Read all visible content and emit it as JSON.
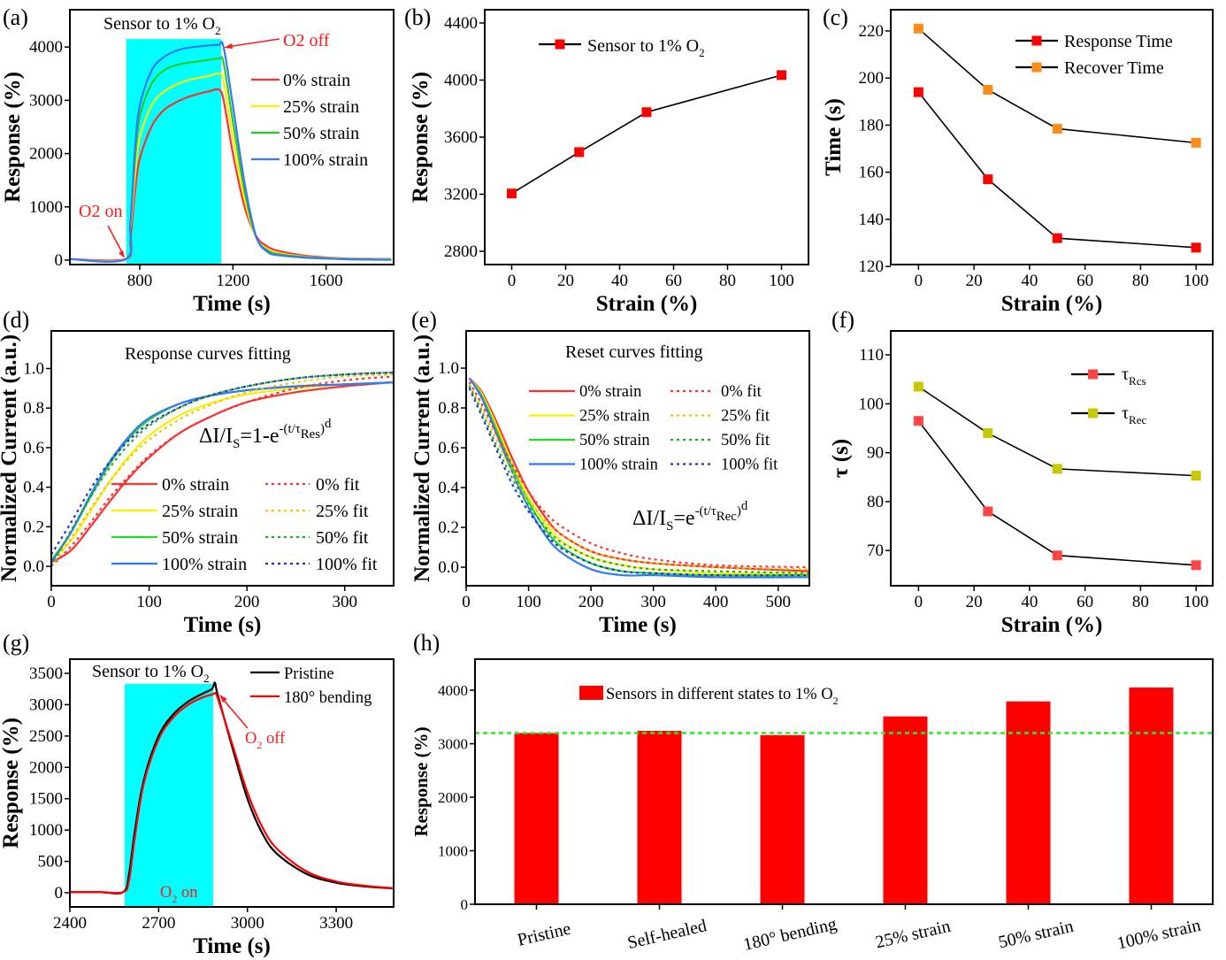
{
  "chart_data": [
    {
      "panel": "(a)",
      "type": "line",
      "title": "Sensor to 1% O",
      "title_sub": "2",
      "xlabel": "Time (s)",
      "ylabel": "Response (%)",
      "xlim": [
        500,
        1890
      ],
      "ylim": [
        -83,
        4700
      ],
      "xticks": [
        "800",
        "1200",
        "1600"
      ],
      "yticks": [
        "0",
        "1000",
        "2000",
        "3000",
        "4000"
      ],
      "highlight_interval": [
        742,
        1150
      ],
      "highlight_top": 4150,
      "highlight_color": "#00ffff",
      "annotations": {
        "off": "O2 off",
        "on": "O2 on"
      },
      "x": [
        500,
        740,
        760,
        780,
        800,
        850,
        900,
        950,
        1000,
        1050,
        1100,
        1140,
        1160,
        1200,
        1250,
        1300,
        1350,
        1400,
        1500,
        1600,
        1700,
        1880
      ],
      "series": [
        {
          "name": "0% strain",
          "color": "#ff3030",
          "values": [
            20,
            20,
            400,
            1300,
            1900,
            2500,
            2800,
            2950,
            3050,
            3120,
            3170,
            3200,
            3000,
            2000,
            1000,
            450,
            250,
            170,
            90,
            50,
            30,
            20
          ]
        },
        {
          "name": "25% strain",
          "color": "#ffee00",
          "values": [
            20,
            20,
            600,
            1600,
            2300,
            2900,
            3150,
            3280,
            3370,
            3420,
            3460,
            3500,
            3350,
            2300,
            1150,
            420,
            200,
            130,
            70,
            40,
            25,
            15
          ]
        },
        {
          "name": "50% strain",
          "color": "#22cc22",
          "values": [
            20,
            20,
            700,
            1900,
            2700,
            3300,
            3550,
            3650,
            3700,
            3730,
            3760,
            3780,
            3700,
            2600,
            1300,
            430,
            180,
            110,
            60,
            35,
            20,
            10
          ]
        },
        {
          "name": "100% strain",
          "color": "#3377ff",
          "values": [
            20,
            20,
            700,
            2100,
            2900,
            3550,
            3800,
            3920,
            3980,
            4010,
            4030,
            4040,
            4000,
            2900,
            1450,
            440,
            150,
            90,
            50,
            30,
            15,
            5
          ]
        }
      ]
    },
    {
      "panel": "(b)",
      "type": "line",
      "xlabel": "Strain (%)",
      "ylabel": "Response (%)",
      "xlim": [
        -10,
        110
      ],
      "ylim": [
        2707,
        4493
      ],
      "xticks": [
        "0",
        "20",
        "40",
        "60",
        "80",
        "100"
      ],
      "yticks": [
        "2800",
        "3200",
        "3600",
        "4000",
        "4400"
      ],
      "x": [
        0,
        25,
        50,
        100
      ],
      "series": [
        {
          "name": "Sensor to 1% O",
          "name_sub": "2",
          "color": "#ff0000",
          "values": [
            3205,
            3495,
            3775,
            4035
          ]
        }
      ]
    },
    {
      "panel": "(c)",
      "type": "line",
      "xlabel": "Strain (%)",
      "ylabel": "Time (s)",
      "xlim": [
        -10,
        106
      ],
      "ylim": [
        120.8,
        229
      ],
      "xticks": [
        "0",
        "20",
        "40",
        "60",
        "80",
        "100"
      ],
      "yticks": [
        "120",
        "140",
        "160",
        "180",
        "200",
        "220"
      ],
      "x": [
        0,
        25,
        50,
        100
      ],
      "series": [
        {
          "name": "Response Time",
          "color": "#ff0000",
          "values": [
            194,
            157,
            132,
            128
          ]
        },
        {
          "name": "Recover Time",
          "color": "#ff8c1a",
          "values": [
            221,
            195,
            178.5,
            172.5
          ]
        }
      ]
    },
    {
      "panel": "(d)",
      "type": "line",
      "title": "Response curves fitting",
      "equation": [
        {
          "text": "ΔI/I",
          "pos": "base"
        },
        {
          "text": "S",
          "pos": "sub"
        },
        {
          "text": "=1-e",
          "pos": "base"
        },
        {
          "text": "-(t/τ",
          "pos": "sup"
        },
        {
          "text": "Res",
          "pos": "supsub"
        },
        {
          "text": ")",
          "pos": "sup"
        },
        {
          "text": "d",
          "pos": "supsup"
        }
      ],
      "xlabel": "Time (s)",
      "ylabel": "Normalized Current (a.u.)",
      "xlim": [
        0,
        350
      ],
      "ylim": [
        -0.098,
        1.19
      ],
      "xticks": [
        "0",
        "100",
        "200",
        "300"
      ],
      "yticks": [
        "0.0",
        "0.2",
        "0.4",
        "0.6",
        "0.8",
        "1.0"
      ],
      "x": [
        0,
        20,
        40,
        60,
        80,
        100,
        130,
        160,
        200,
        250,
        300,
        350
      ],
      "series": [
        {
          "name": "0% strain",
          "color": "#ff3030",
          "style": "solid",
          "values": [
            0.02,
            0.08,
            0.2,
            0.33,
            0.45,
            0.55,
            0.67,
            0.75,
            0.83,
            0.88,
            0.91,
            0.93
          ]
        },
        {
          "name": "25% strain",
          "color": "#ffee00",
          "style": "solid",
          "values": [
            0.03,
            0.13,
            0.28,
            0.43,
            0.56,
            0.66,
            0.76,
            0.82,
            0.87,
            0.9,
            0.92,
            0.93
          ]
        },
        {
          "name": "50% strain",
          "color": "#22dd22",
          "style": "solid",
          "values": [
            0.03,
            0.17,
            0.35,
            0.52,
            0.65,
            0.74,
            0.82,
            0.86,
            0.89,
            0.91,
            0.92,
            0.93
          ]
        },
        {
          "name": "100% strain",
          "color": "#3377ff",
          "style": "solid",
          "values": [
            0.02,
            0.17,
            0.36,
            0.53,
            0.66,
            0.75,
            0.82,
            0.86,
            0.89,
            0.91,
            0.92,
            0.93
          ]
        },
        {
          "name": "0% fit",
          "color": "#ff3030",
          "style": "dotted",
          "values": [
            0.0,
            0.1,
            0.22,
            0.35,
            0.46,
            0.56,
            0.67,
            0.75,
            0.83,
            0.9,
            0.94,
            0.96
          ]
        },
        {
          "name": "25% fit",
          "color": "#e6c800",
          "style": "dotted",
          "values": [
            0.0,
            0.14,
            0.29,
            0.43,
            0.55,
            0.64,
            0.74,
            0.81,
            0.88,
            0.93,
            0.96,
            0.97
          ]
        },
        {
          "name": "50% fit",
          "color": "#22aa22",
          "style": "dotted",
          "values": [
            0.0,
            0.18,
            0.35,
            0.5,
            0.62,
            0.71,
            0.8,
            0.86,
            0.91,
            0.95,
            0.97,
            0.98
          ]
        },
        {
          "name": "100% fit",
          "color": "#2233cc",
          "style": "dotted",
          "values": [
            0.06,
            0.22,
            0.39,
            0.53,
            0.64,
            0.72,
            0.8,
            0.86,
            0.91,
            0.95,
            0.97,
            0.98
          ]
        }
      ]
    },
    {
      "panel": "(e)",
      "type": "line",
      "title": "Reset curves fitting",
      "equation": [
        {
          "text": "ΔI/I",
          "pos": "base"
        },
        {
          "text": "S",
          "pos": "sub"
        },
        {
          "text": "=e",
          "pos": "base"
        },
        {
          "text": "-(t/τ",
          "pos": "sup"
        },
        {
          "text": "Rec",
          "pos": "supsub"
        },
        {
          "text": ")",
          "pos": "sup"
        },
        {
          "text": "d",
          "pos": "supsup"
        }
      ],
      "xlabel": "Time (s)",
      "ylabel": "Normalized Current (a.u.)",
      "xlim": [
        0,
        550
      ],
      "ylim": [
        -0.093,
        1.187
      ],
      "xticks": [
        "0",
        "100",
        "200",
        "300",
        "400",
        "500"
      ],
      "yticks": [
        "0.0",
        "0.2",
        "0.4",
        "0.6",
        "0.8",
        "1.0"
      ],
      "x": [
        5,
        25,
        50,
        75,
        100,
        125,
        150,
        200,
        250,
        300,
        400,
        550
      ],
      "series": [
        {
          "name": "0% strain",
          "color": "#ff3030",
          "style": "solid",
          "values": [
            0.95,
            0.88,
            0.72,
            0.54,
            0.38,
            0.26,
            0.17,
            0.08,
            0.04,
            0.02,
            0.0,
            -0.02
          ]
        },
        {
          "name": "25% strain",
          "color": "#ffee00",
          "style": "solid",
          "values": [
            0.95,
            0.87,
            0.7,
            0.51,
            0.35,
            0.23,
            0.14,
            0.05,
            0.01,
            -0.01,
            -0.03,
            -0.03
          ]
        },
        {
          "name": "50% strain",
          "color": "#22dd22",
          "style": "solid",
          "values": [
            0.95,
            0.86,
            0.68,
            0.49,
            0.33,
            0.2,
            0.11,
            0.02,
            -0.02,
            -0.03,
            -0.04,
            -0.04
          ]
        },
        {
          "name": "100% strain",
          "color": "#3377ff",
          "style": "solid",
          "values": [
            0.95,
            0.85,
            0.66,
            0.47,
            0.3,
            0.17,
            0.08,
            -0.01,
            -0.04,
            -0.04,
            -0.05,
            -0.05
          ]
        },
        {
          "name": "0% fit",
          "color": "#ff3030",
          "style": "dotted",
          "values": [
            0.93,
            0.82,
            0.66,
            0.51,
            0.38,
            0.28,
            0.21,
            0.12,
            0.07,
            0.04,
            0.01,
            0.0
          ]
        },
        {
          "name": "25% fit",
          "color": "#e6c800",
          "style": "dotted",
          "values": [
            0.92,
            0.8,
            0.63,
            0.47,
            0.34,
            0.24,
            0.17,
            0.08,
            0.04,
            0.02,
            0.0,
            -0.01
          ]
        },
        {
          "name": "50% fit",
          "color": "#22aa22",
          "style": "dotted",
          "values": [
            0.91,
            0.78,
            0.6,
            0.44,
            0.31,
            0.21,
            0.13,
            0.05,
            0.01,
            -0.01,
            -0.02,
            -0.03
          ]
        },
        {
          "name": "100% fit",
          "color": "#2233cc",
          "style": "dotted",
          "values": [
            0.9,
            0.76,
            0.58,
            0.41,
            0.28,
            0.18,
            0.1,
            0.02,
            -0.02,
            -0.03,
            -0.04,
            -0.04
          ]
        }
      ]
    },
    {
      "panel": "(f)",
      "type": "line",
      "xlabel": "Strain (%)",
      "ylabel": "τ (s)",
      "xlim": [
        -10,
        106
      ],
      "ylim": [
        62.8,
        114.9
      ],
      "xticks": [
        "0",
        "20",
        "40",
        "60",
        "80",
        "100"
      ],
      "yticks": [
        "70",
        "80",
        "90",
        "100",
        "110"
      ],
      "x": [
        0,
        25,
        50,
        100
      ],
      "series": [
        {
          "name": "τ",
          "name_sub": "Rcs",
          "color": "#ff4444",
          "values": [
            96.5,
            78,
            69,
            67
          ]
        },
        {
          "name": "τ",
          "name_sub": "Rec",
          "color": "#c8c800",
          "values": [
            103.5,
            94,
            86.7,
            85.3
          ]
        }
      ]
    },
    {
      "panel": "(g)",
      "type": "line",
      "title": "Sensor to 1% O",
      "title_sub": "2",
      "xlabel": "Time (s)",
      "ylabel": "Response (%)",
      "xlim": [
        2400,
        3494
      ],
      "ylim": [
        -226,
        3726
      ],
      "xticks": [
        "2400",
        "2700",
        "3000",
        "3300"
      ],
      "yticks": [
        "0",
        "500",
        "1000",
        "1500",
        "2000",
        "2500",
        "3000",
        "3500"
      ],
      "highlight_interval": [
        2585,
        2884
      ],
      "highlight_top": 3330,
      "highlight_color": "#00ffff",
      "annotations": {
        "off": "O",
        "off_sub": "2",
        "off_rest": " off",
        "on": "O",
        "on_sub": "2",
        "on_rest": " on"
      },
      "x": [
        2400,
        2500,
        2580,
        2600,
        2620,
        2650,
        2700,
        2750,
        2800,
        2850,
        2880,
        2890,
        2900,
        2950,
        3000,
        3050,
        3100,
        3200,
        3300,
        3400,
        3490
      ],
      "series": [
        {
          "name": "Pristine",
          "color": "#000000",
          "values": [
            10,
            10,
            10,
            300,
            1000,
            1800,
            2500,
            2850,
            3050,
            3180,
            3250,
            3350,
            3150,
            2300,
            1500,
            950,
            620,
            300,
            160,
            100,
            70
          ]
        },
        {
          "name": "180° bending",
          "color": "#ff0000",
          "values": [
            10,
            10,
            10,
            200,
            900,
            1750,
            2450,
            2800,
            3000,
            3120,
            3160,
            3180,
            3100,
            2350,
            1600,
            1050,
            700,
            340,
            180,
            110,
            75
          ]
        }
      ]
    },
    {
      "panel": "(h)",
      "type": "bar",
      "ylabel": "Response (%)",
      "ylim": [
        0,
        4580
      ],
      "yticks": [
        "0",
        "1000",
        "2000",
        "3000",
        "4000"
      ],
      "categories": [
        "Pristine",
        "Self-healed",
        "180° bending",
        "25% strain",
        "50% strain",
        "100% strain"
      ],
      "values": [
        3200,
        3240,
        3160,
        3510,
        3790,
        4050
      ],
      "reference_line": 3200,
      "reference_color": "#22ee22",
      "series": [
        {
          "name": "Sensors in different states to 1% O",
          "name_sub": "2",
          "color": "#ff0000"
        }
      ]
    }
  ]
}
